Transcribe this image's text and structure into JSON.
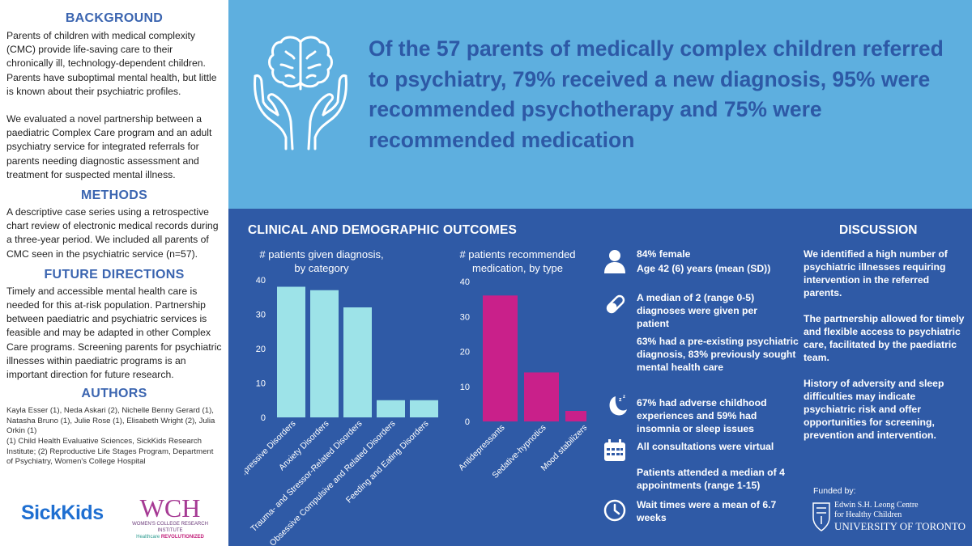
{
  "left": {
    "background_heading": "BACKGROUND",
    "background_p1": "Parents of children with medical complexity (CMC) provide life-saving care to their chronically ill, technology-dependent children. Parents have suboptimal mental health, but little is known about their psychiatric profiles.",
    "background_p2": "We evaluated a novel partnership between a paediatric Complex Care program and an adult psychiatry service for integrated referrals for parents needing diagnostic assessment and treatment for suspected mental illness.",
    "methods_heading": "METHODS",
    "methods_p": "A descriptive case series using a retrospective chart review of electronic medical records during a three-year period. We included all parents of CMC seen in the psychiatric service (n=57).",
    "future_heading": "FUTURE DIRECTIONS",
    "future_p": "Timely and accessible mental health care is needed for this at-risk population. Partnership between paediatric and psychiatric services is feasible and may be adapted in other Complex Care programs. Screening parents for psychiatric illnesses within paediatric programs is an important direction for future research.",
    "authors_heading": "AUTHORS",
    "authors_names": "Kayla Esser (1), Neda Askari (2), Nichelle Benny Gerard (1), Natasha Bruno (1), Julie Rose (1), Elisabeth Wright (2), Julia Orkin (1)",
    "authors_aff": "(1) Child Health Evaluative Sciences, SickKids Research Institute; (2) Reproductive Life Stages Program, Department of Psychiatry, Women's College Hospital",
    "logo_sickkids": "SickKids",
    "logo_wch": "WCH",
    "logo_wch_sub": "WOMEN'S COLLEGE RESEARCH INSTITUTE",
    "logo_wch_tag1": "Healthcare",
    "logo_wch_tag2": "REVOLUTIONIZED"
  },
  "banner": {
    "headline": "Of the 57 parents of medically complex children referred to psychiatry, 79% received a new diagnosis, 95% were recommended psychotherapy and 75% were recommended medication"
  },
  "panel": {
    "outcomes_title": "CLINICAL AND DEMOGRAPHIC OUTCOMES",
    "discussion_title": "DISCUSSION",
    "stats": {
      "s1a": "84% female",
      "s1b": "Age 42 (6) years (mean (SD))",
      "s2": "A median of 2 (range 0-5) diagnoses were given per patient",
      "s3": "63% had a pre-existing psychiatric diagnosis, 83% previously sought mental health care",
      "s4": "67% had adverse childhood experiences and 59% had insomnia or sleep issues",
      "s5": "All consultations were virtual",
      "s6": "Patients attended a median of 4 appointments (range 1-15)",
      "s7": "Wait times were a mean of 6.7 weeks"
    },
    "discussion": {
      "p1": "We identified a high number of psychiatric illnesses requiring intervention in the referred parents.",
      "p2": "The partnership allowed for timely and flexible access to psychiatric care, facilitated by the paediatric team.",
      "p3": "History of adversity and sleep difficulties may  indicate psychiatric risk and offer opportunities for screening, prevention and intervention."
    },
    "funded_by": "Funded by:",
    "funder_line1": "Edwin S.H. Leong Centre",
    "funder_line2": "for Healthy Children",
    "funder_line3": "UNIVERSITY OF TORONTO"
  },
  "colors": {
    "banner": "#5eafdf",
    "panel": "#2f5aa6",
    "headline": "#2d59a6",
    "bar_diag": "#9de3e8",
    "bar_med": "#c9208a"
  },
  "chart_data": [
    {
      "type": "bar",
      "title": "# patients given diagnosis, by category",
      "categories": [
        "Depressive Disorders",
        "Anxiety Disorders",
        "Trauma- and Stressor-Related Disorders",
        "Obsessive Compulsive and Related Disorders",
        "Feeding and Eating Disorders"
      ],
      "values": [
        38,
        37,
        32,
        5,
        5
      ],
      "yticks": [
        0,
        10,
        20,
        30,
        40
      ],
      "ylim": [
        0,
        40
      ],
      "grid": false
    },
    {
      "type": "bar",
      "title": "# patients recommended medication, by type",
      "categories": [
        "Antidepressants",
        "Sedative-hypnotics",
        "Mood stabilizers"
      ],
      "values": [
        36,
        14,
        3
      ],
      "yticks": [
        0,
        10,
        20,
        30,
        40
      ],
      "ylim": [
        0,
        40
      ],
      "grid": false
    }
  ]
}
